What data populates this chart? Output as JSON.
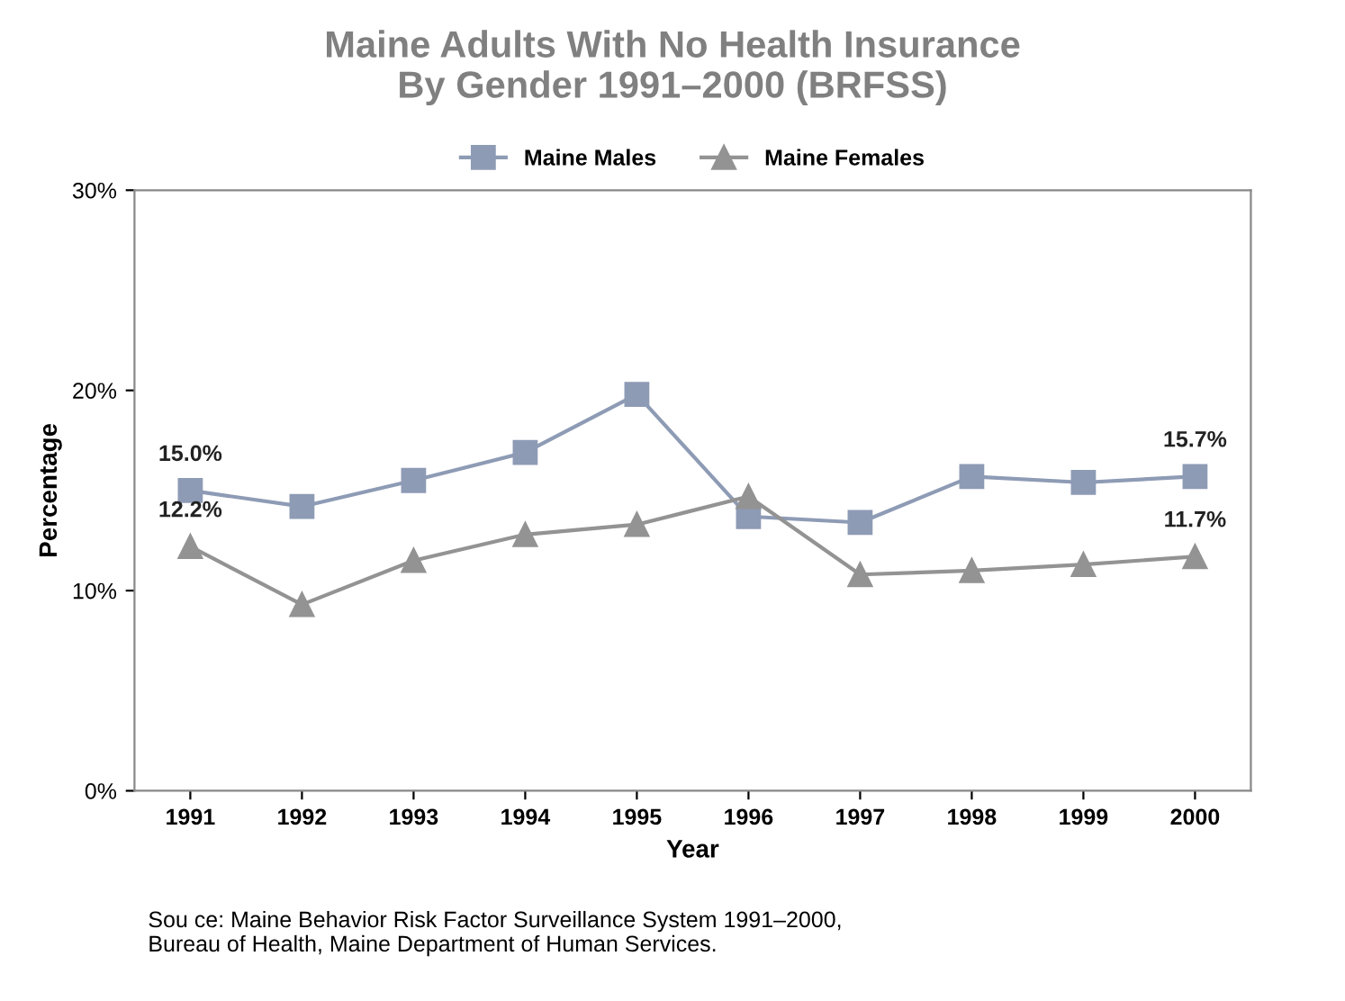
{
  "chart_data": {
    "type": "line",
    "title": "Maine Adults With No Health Insurance\nBy Gender 1991–2000 (BRFSS)",
    "xlabel": "Year",
    "ylabel": "Percentage",
    "categories": [
      "1991",
      "1992",
      "1993",
      "1994",
      "1995",
      "1996",
      "1997",
      "1998",
      "1999",
      "2000"
    ],
    "series": [
      {
        "name": "Maine Males",
        "color": "#8e9bb5",
        "marker": "square",
        "values": [
          15.0,
          14.2,
          15.5,
          16.9,
          19.8,
          13.7,
          13.4,
          15.7,
          15.4,
          15.7
        ],
        "value_labels": [
          "15.0%",
          null,
          null,
          null,
          null,
          null,
          null,
          null,
          null,
          "15.7%"
        ]
      },
      {
        "name": "Maine Females",
        "color": "#939393",
        "marker": "triangle",
        "values": [
          12.2,
          9.3,
          11.5,
          12.8,
          13.3,
          14.7,
          10.8,
          11.0,
          11.3,
          11.7
        ],
        "value_labels": [
          "12.2%",
          null,
          null,
          null,
          null,
          null,
          null,
          null,
          null,
          "11.7%"
        ]
      }
    ],
    "ylim": [
      0,
      30
    ],
    "yticks": [
      {
        "value": 0,
        "label": "0%"
      },
      {
        "value": 10,
        "label": "10%"
      },
      {
        "value": 20,
        "label": "20%"
      },
      {
        "value": 30,
        "label": "30%"
      }
    ],
    "grid": false,
    "legend": "top",
    "annotations": [
      "Sou ce: Maine Behavior Risk Factor Surveillance System 1991–2000,\nBureau of Health, Maine Department of Human Services."
    ]
  }
}
